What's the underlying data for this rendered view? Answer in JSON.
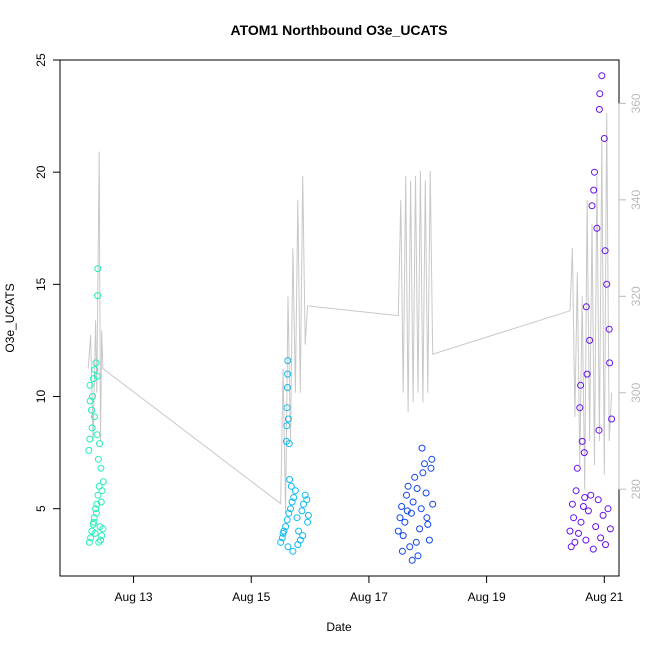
{
  "chart_data": {
    "type": "scatter",
    "title": "ATOM1 Northbound O3e_UCATS",
    "xlabel": "Date",
    "ylabel": "O3e_UCATS",
    "x_axis": {
      "type": "date",
      "range": [
        "2016-08-11T18:00",
        "2016-08-21T06:00"
      ],
      "ticks": [
        {
          "value": "2016-08-13",
          "label": "Aug 13"
        },
        {
          "value": "2016-08-15",
          "label": "Aug 15"
        },
        {
          "value": "2016-08-17",
          "label": "Aug 17"
        },
        {
          "value": "2016-08-19",
          "label": "Aug 19"
        },
        {
          "value": "2016-08-21",
          "label": "Aug 21"
        }
      ]
    },
    "y_axis_left": {
      "range": [
        2,
        25
      ],
      "ticks": [
        5,
        10,
        15,
        20,
        25
      ]
    },
    "y_axis_right": {
      "range": [
        262,
        369
      ],
      "ticks": [
        280,
        300,
        320,
        340,
        360
      ],
      "color": "#bbbbbb"
    },
    "grid": false,
    "series": [
      {
        "marker": "open-circle",
        "color": "#22eebb",
        "points": [
          {
            "x": "2016-08-12T06:00",
            "y": 3.5
          },
          {
            "x": "2016-08-12T06:30",
            "y": 3.7
          },
          {
            "x": "2016-08-12T07:00",
            "y": 4.0
          },
          {
            "x": "2016-08-12T07:30",
            "y": 4.3
          },
          {
            "x": "2016-08-12T08:00",
            "y": 4.6
          },
          {
            "x": "2016-08-12T08:30",
            "y": 5.0
          },
          {
            "x": "2016-08-12T09:00",
            "y": 5.2
          },
          {
            "x": "2016-08-12T09:30",
            "y": 5.6
          },
          {
            "x": "2016-08-12T10:00",
            "y": 6.0
          },
          {
            "x": "2016-08-12T10:30",
            "y": 3.6
          },
          {
            "x": "2016-08-12T11:00",
            "y": 3.8
          },
          {
            "x": "2016-08-12T11:30",
            "y": 4.1
          },
          {
            "x": "2016-08-12T05:45",
            "y": 7.6
          },
          {
            "x": "2016-08-12T06:10",
            "y": 8.1
          },
          {
            "x": "2016-08-12T06:20",
            "y": 9.8
          },
          {
            "x": "2016-08-12T06:15",
            "y": 10.5
          },
          {
            "x": "2016-08-12T06:50",
            "y": 9.4
          },
          {
            "x": "2016-08-12T07:15",
            "y": 10.0
          },
          {
            "x": "2016-08-12T07:40",
            "y": 10.8
          },
          {
            "x": "2016-08-12T08:10",
            "y": 11.2
          },
          {
            "x": "2016-08-12T08:40",
            "y": 11.5
          },
          {
            "x": "2016-08-12T09:10",
            "y": 10.9
          },
          {
            "x": "2016-08-12T09:40",
            "y": 7.2
          },
          {
            "x": "2016-08-12T10:10",
            "y": 7.9
          },
          {
            "x": "2016-08-12T10:40",
            "y": 6.8
          },
          {
            "x": "2016-08-12T09:20",
            "y": 14.5
          },
          {
            "x": "2016-08-12T09:25",
            "y": 15.7
          },
          {
            "x": "2016-08-12T11:10",
            "y": 5.8
          },
          {
            "x": "2016-08-12T11:40",
            "y": 6.2
          },
          {
            "x": "2016-08-12T07:50",
            "y": 4.4
          },
          {
            "x": "2016-08-12T08:20",
            "y": 3.9
          },
          {
            "x": "2016-08-12T08:50",
            "y": 4.8
          },
          {
            "x": "2016-08-12T09:50",
            "y": 3.5
          },
          {
            "x": "2016-08-12T10:20",
            "y": 4.2
          },
          {
            "x": "2016-08-12T10:50",
            "y": 5.3
          },
          {
            "x": "2016-08-12T07:05",
            "y": 8.6
          },
          {
            "x": "2016-08-12T08:05",
            "y": 9.1
          },
          {
            "x": "2016-08-12T09:05",
            "y": 8.3
          }
        ]
      },
      {
        "marker": "open-circle",
        "color": "#11bbee",
        "points": [
          {
            "x": "2016-08-15T12:00",
            "y": 3.5
          },
          {
            "x": "2016-08-15T12:40",
            "y": 3.7
          },
          {
            "x": "2016-08-15T13:20",
            "y": 4.0
          },
          {
            "x": "2016-08-15T14:00",
            "y": 4.2
          },
          {
            "x": "2016-08-15T14:40",
            "y": 4.5
          },
          {
            "x": "2016-08-15T15:20",
            "y": 4.8
          },
          {
            "x": "2016-08-15T16:00",
            "y": 5.0
          },
          {
            "x": "2016-08-15T16:40",
            "y": 5.3
          },
          {
            "x": "2016-08-15T17:20",
            "y": 5.5
          },
          {
            "x": "2016-08-15T18:00",
            "y": 5.8
          },
          {
            "x": "2016-08-15T18:40",
            "y": 4.6
          },
          {
            "x": "2016-08-15T19:20",
            "y": 4.0
          },
          {
            "x": "2016-08-15T20:00",
            "y": 3.6
          },
          {
            "x": "2016-08-15T20:40",
            "y": 4.9
          },
          {
            "x": "2016-08-15T21:20",
            "y": 5.2
          },
          {
            "x": "2016-08-15T22:00",
            "y": 5.6
          },
          {
            "x": "2016-08-15T22:40",
            "y": 5.4
          },
          {
            "x": "2016-08-15T23:20",
            "y": 4.7
          },
          {
            "x": "2016-08-15T13:00",
            "y": 3.9
          },
          {
            "x": "2016-08-15T15:00",
            "y": 3.3
          },
          {
            "x": "2016-08-15T17:00",
            "y": 3.1
          },
          {
            "x": "2016-08-15T19:00",
            "y": 3.4
          },
          {
            "x": "2016-08-15T21:00",
            "y": 3.8
          },
          {
            "x": "2016-08-15T23:00",
            "y": 4.4
          },
          {
            "x": "2016-08-15T14:20",
            "y": 8.0
          },
          {
            "x": "2016-08-15T14:30",
            "y": 8.7
          },
          {
            "x": "2016-08-15T14:35",
            "y": 9.5
          },
          {
            "x": "2016-08-15T14:45",
            "y": 10.4
          },
          {
            "x": "2016-08-15T14:50",
            "y": 11.0
          },
          {
            "x": "2016-08-15T14:55",
            "y": 11.6
          },
          {
            "x": "2016-08-15T15:10",
            "y": 9.0
          },
          {
            "x": "2016-08-15T15:30",
            "y": 7.9
          },
          {
            "x": "2016-08-15T15:40",
            "y": 6.3
          },
          {
            "x": "2016-08-15T16:20",
            "y": 6.0
          }
        ]
      },
      {
        "marker": "open-circle",
        "color": "#1144ee",
        "points": [
          {
            "x": "2016-08-17T12:00",
            "y": 4.0
          },
          {
            "x": "2016-08-17T12:40",
            "y": 4.6
          },
          {
            "x": "2016-08-17T13:20",
            "y": 5.1
          },
          {
            "x": "2016-08-17T14:00",
            "y": 3.8
          },
          {
            "x": "2016-08-17T14:40",
            "y": 4.4
          },
          {
            "x": "2016-08-17T15:20",
            "y": 5.6
          },
          {
            "x": "2016-08-17T16:00",
            "y": 6.0
          },
          {
            "x": "2016-08-17T16:40",
            "y": 3.3
          },
          {
            "x": "2016-08-17T17:20",
            "y": 4.8
          },
          {
            "x": "2016-08-17T18:00",
            "y": 5.3
          },
          {
            "x": "2016-08-17T18:40",
            "y": 6.4
          },
          {
            "x": "2016-08-17T19:20",
            "y": 3.5
          },
          {
            "x": "2016-08-17T20:00",
            "y": 2.9
          },
          {
            "x": "2016-08-17T20:40",
            "y": 4.1
          },
          {
            "x": "2016-08-17T21:20",
            "y": 5.0
          },
          {
            "x": "2016-08-17T22:00",
            "y": 6.6
          },
          {
            "x": "2016-08-17T22:40",
            "y": 7.0
          },
          {
            "x": "2016-08-17T23:20",
            "y": 5.7
          },
          {
            "x": "2016-08-18T00:00",
            "y": 4.3
          },
          {
            "x": "2016-08-18T00:40",
            "y": 3.6
          },
          {
            "x": "2016-08-18T01:20",
            "y": 6.8
          },
          {
            "x": "2016-08-18T02:00",
            "y": 5.2
          },
          {
            "x": "2016-08-17T21:40",
            "y": 7.7
          },
          {
            "x": "2016-08-17T13:40",
            "y": 3.1
          },
          {
            "x": "2016-08-17T15:40",
            "y": 4.9
          },
          {
            "x": "2016-08-17T17:40",
            "y": 2.7
          },
          {
            "x": "2016-08-17T19:40",
            "y": 5.9
          },
          {
            "x": "2016-08-17T23:40",
            "y": 4.6
          },
          {
            "x": "2016-08-18T01:40",
            "y": 7.2
          }
        ]
      },
      {
        "marker": "open-circle",
        "color": "#6611ee",
        "points": [
          {
            "x": "2016-08-20T10:00",
            "y": 4.0
          },
          {
            "x": "2016-08-20T11:00",
            "y": 5.2
          },
          {
            "x": "2016-08-20T12:00",
            "y": 3.5
          },
          {
            "x": "2016-08-20T13:00",
            "y": 6.8
          },
          {
            "x": "2016-08-20T14:00",
            "y": 9.5
          },
          {
            "x": "2016-08-20T15:00",
            "y": 8.0
          },
          {
            "x": "2016-08-20T16:00",
            "y": 5.5
          },
          {
            "x": "2016-08-20T17:00",
            "y": 11.0
          },
          {
            "x": "2016-08-20T18:00",
            "y": 12.5
          },
          {
            "x": "2016-08-20T19:00",
            "y": 18.5
          },
          {
            "x": "2016-08-20T20:00",
            "y": 20.0
          },
          {
            "x": "2016-08-20T21:00",
            "y": 17.5
          },
          {
            "x": "2016-08-20T22:00",
            "y": 22.8
          },
          {
            "x": "2016-08-20T23:00",
            "y": 24.3
          },
          {
            "x": "2016-08-21T00:00",
            "y": 21.5
          },
          {
            "x": "2016-08-21T01:00",
            "y": 15.0
          },
          {
            "x": "2016-08-21T02:00",
            "y": 13.0
          },
          {
            "x": "2016-08-21T03:00",
            "y": 9.0
          },
          {
            "x": "2016-08-20T10:30",
            "y": 3.3
          },
          {
            "x": "2016-08-20T11:30",
            "y": 4.6
          },
          {
            "x": "2016-08-20T12:30",
            "y": 5.8
          },
          {
            "x": "2016-08-20T13:30",
            "y": 3.9
          },
          {
            "x": "2016-08-20T14:30",
            "y": 4.4
          },
          {
            "x": "2016-08-20T15:30",
            "y": 5.1
          },
          {
            "x": "2016-08-20T16:30",
            "y": 3.6
          },
          {
            "x": "2016-08-20T17:30",
            "y": 4.9
          },
          {
            "x": "2016-08-20T18:30",
            "y": 5.6
          },
          {
            "x": "2016-08-20T19:30",
            "y": 3.2
          },
          {
            "x": "2016-08-20T20:30",
            "y": 4.2
          },
          {
            "x": "2016-08-20T21:30",
            "y": 5.4
          },
          {
            "x": "2016-08-20T22:30",
            "y": 3.7
          },
          {
            "x": "2016-08-20T23:30",
            "y": 4.7
          },
          {
            "x": "2016-08-21T00:30",
            "y": 3.4
          },
          {
            "x": "2016-08-21T01:30",
            "y": 5.0
          },
          {
            "x": "2016-08-21T02:30",
            "y": 4.1
          },
          {
            "x": "2016-08-20T14:20",
            "y": 10.5
          },
          {
            "x": "2016-08-20T16:40",
            "y": 14.0
          },
          {
            "x": "2016-08-20T19:40",
            "y": 19.2
          },
          {
            "x": "2016-08-20T22:10",
            "y": 23.5
          },
          {
            "x": "2016-08-21T00:20",
            "y": 16.5
          },
          {
            "x": "2016-08-21T02:10",
            "y": 11.5
          },
          {
            "x": "2016-08-20T15:50",
            "y": 7.5
          },
          {
            "x": "2016-08-20T21:50",
            "y": 8.5
          }
        ]
      },
      {
        "type": "line",
        "axis": "right",
        "color": "#c8c8c8",
        "points": [
          {
            "x": "2016-08-12T05:30",
            "y": 305
          },
          {
            "x": "2016-08-12T06:30",
            "y": 312
          },
          {
            "x": "2016-08-12T07:30",
            "y": 290
          },
          {
            "x": "2016-08-12T08:30",
            "y": 315
          },
          {
            "x": "2016-08-12T09:00",
            "y": 300
          },
          {
            "x": "2016-08-12T10:00",
            "y": 350
          },
          {
            "x": "2016-08-12T10:30",
            "y": 290
          },
          {
            "x": "2016-08-12T11:00",
            "y": 313
          },
          {
            "x": "2016-08-12T11:30",
            "y": 305
          },
          {
            "x": "2016-08-15T12:00",
            "y": 277
          },
          {
            "x": "2016-08-15T13:00",
            "y": 305
          },
          {
            "x": "2016-08-15T14:00",
            "y": 275
          },
          {
            "x": "2016-08-15T15:00",
            "y": 320
          },
          {
            "x": "2016-08-15T16:00",
            "y": 290
          },
          {
            "x": "2016-08-15T17:00",
            "y": 330
          },
          {
            "x": "2016-08-15T18:00",
            "y": 300
          },
          {
            "x": "2016-08-15T19:00",
            "y": 340
          },
          {
            "x": "2016-08-15T20:00",
            "y": 300
          },
          {
            "x": "2016-08-15T21:00",
            "y": 345
          },
          {
            "x": "2016-08-15T22:00",
            "y": 310
          },
          {
            "x": "2016-08-15T23:00",
            "y": 318
          },
          {
            "x": "2016-08-17T12:00",
            "y": 316
          },
          {
            "x": "2016-08-17T13:00",
            "y": 340
          },
          {
            "x": "2016-08-17T14:00",
            "y": 300
          },
          {
            "x": "2016-08-17T15:00",
            "y": 345
          },
          {
            "x": "2016-08-17T16:00",
            "y": 296
          },
          {
            "x": "2016-08-17T17:00",
            "y": 344
          },
          {
            "x": "2016-08-17T18:00",
            "y": 298
          },
          {
            "x": "2016-08-17T19:00",
            "y": 345
          },
          {
            "x": "2016-08-17T20:00",
            "y": 300
          },
          {
            "x": "2016-08-17T21:00",
            "y": 346
          },
          {
            "x": "2016-08-17T22:00",
            "y": 298
          },
          {
            "x": "2016-08-17T23:00",
            "y": 344
          },
          {
            "x": "2016-08-18T00:00",
            "y": 300
          },
          {
            "x": "2016-08-18T01:00",
            "y": 346
          },
          {
            "x": "2016-08-18T02:00",
            "y": 308
          },
          {
            "x": "2016-08-20T10:00",
            "y": 317
          },
          {
            "x": "2016-08-20T11:00",
            "y": 330
          },
          {
            "x": "2016-08-20T12:00",
            "y": 295
          },
          {
            "x": "2016-08-20T13:00",
            "y": 325
          },
          {
            "x": "2016-08-20T14:00",
            "y": 285
          },
          {
            "x": "2016-08-20T15:00",
            "y": 320
          },
          {
            "x": "2016-08-20T16:00",
            "y": 280
          },
          {
            "x": "2016-08-20T17:00",
            "y": 340
          },
          {
            "x": "2016-08-20T18:00",
            "y": 290
          },
          {
            "x": "2016-08-20T19:00",
            "y": 335
          },
          {
            "x": "2016-08-20T20:00",
            "y": 285
          },
          {
            "x": "2016-08-20T21:00",
            "y": 345
          },
          {
            "x": "2016-08-20T22:00",
            "y": 290
          },
          {
            "x": "2016-08-20T23:00",
            "y": 352
          },
          {
            "x": "2016-08-21T00:00",
            "y": 283
          },
          {
            "x": "2016-08-21T01:00",
            "y": 358
          },
          {
            "x": "2016-08-21T02:00",
            "y": 290
          },
          {
            "x": "2016-08-21T03:00",
            "y": 300
          }
        ]
      }
    ]
  }
}
